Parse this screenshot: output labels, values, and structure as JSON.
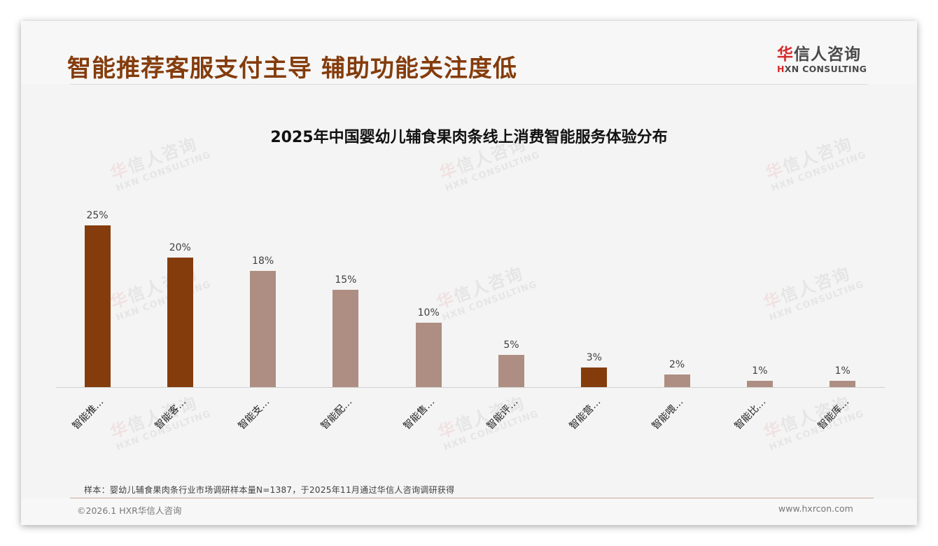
{
  "slide": {
    "title": "智能推荐客服支付主导 辅助功能关注度低",
    "logo": {
      "cn_hua": "华",
      "cn_rest": "信人咨询",
      "en_h": "H",
      "en_rest": "XN CONSULTING"
    },
    "watermark": {
      "cn_hua": "华",
      "cn_rest": "信人咨询",
      "en": "HXN CONSULTING"
    },
    "note": "样本：婴幼儿辅食果肉条行业市场调研样本量N=1387，于2025年11月通过华信人咨询调研获得",
    "copyright": "©2026.1 HXR华信人咨询",
    "website": "www.hxrcon.com"
  },
  "colors": {
    "highlight": "#843C0C",
    "normal": "#AE8E82",
    "title": "#843C0C"
  },
  "chart_data": {
    "type": "bar",
    "title": "2025年中国婴幼儿辅食果肉条线上消费智能服务体验分布",
    "xlabel": "",
    "ylabel": "",
    "ylim": [
      0,
      25
    ],
    "grid": false,
    "legend": null,
    "categories": [
      "智能推…",
      "智能客…",
      "智能支…",
      "智能配…",
      "智能售…",
      "智能评…",
      "智能营…",
      "智能喂…",
      "智能比…",
      "智能库…"
    ],
    "values": [
      25,
      20,
      18,
      15,
      10,
      5,
      3,
      2,
      1,
      1
    ],
    "value_labels": [
      "25%",
      "20%",
      "18%",
      "15%",
      "10%",
      "5%",
      "3%",
      "2%",
      "1%",
      "1%"
    ],
    "highlighted": [
      true,
      true,
      false,
      false,
      false,
      false,
      true,
      false,
      false,
      false
    ]
  }
}
